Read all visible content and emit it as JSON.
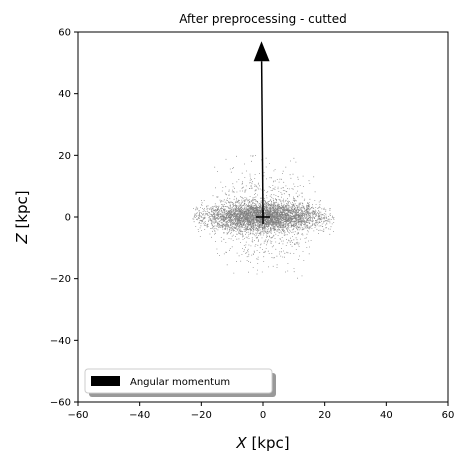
{
  "chart_data": {
    "type": "scatter",
    "title": "After preprocessing - cutted",
    "xlabel": "X [kpc]",
    "ylabel": "Z [kpc]",
    "xlabel_var": "X",
    "xlabel_unit": " [kpc]",
    "ylabel_var": "Z",
    "ylabel_unit": " [kpc]",
    "xlim": [
      -60,
      60
    ],
    "ylim": [
      -60,
      60
    ],
    "xticks": [
      -60,
      -40,
      -20,
      0,
      20,
      40,
      60
    ],
    "yticks": [
      -60,
      -40,
      -20,
      0,
      20,
      40,
      60
    ],
    "xtick_labels": [
      "−60",
      "−40",
      "−20",
      "0",
      "20",
      "40",
      "60"
    ],
    "ytick_labels": [
      "−60",
      "−40",
      "−20",
      "0",
      "20",
      "40",
      "60"
    ],
    "grid": false,
    "series": [
      {
        "kind": "particles",
        "color": "#808080",
        "description_values": {
          "center": [
            0,
            0
          ],
          "disk_radius_extent": 23,
          "disk_vertical_extent": 7,
          "halo_radius_extent": 17,
          "halo_vertical_extent": 20,
          "point_count": 6000
        }
      },
      {
        "kind": "arrow",
        "name": "Angular momentum",
        "color": "#000000",
        "from": [
          0,
          0
        ],
        "to": [
          -0.5,
          57
        ]
      },
      {
        "kind": "marker",
        "marker": "+",
        "color": "#000000",
        "at": [
          0,
          0
        ]
      }
    ],
    "legend": {
      "position": "lower-left",
      "entries": [
        "Angular momentum"
      ]
    }
  }
}
